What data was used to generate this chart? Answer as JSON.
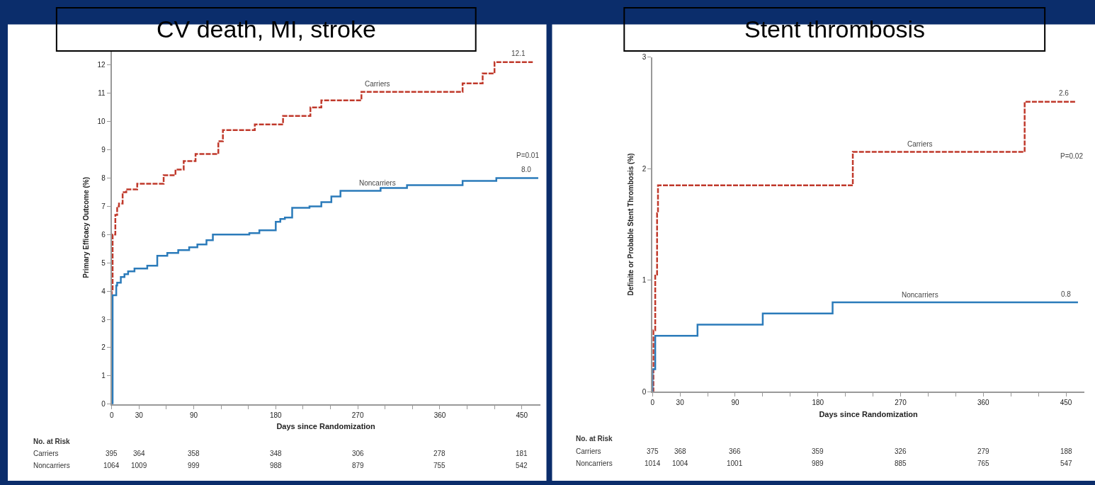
{
  "chart_data": [
    {
      "type": "step",
      "title": "CV death, MI, stroke",
      "xlabel": "Days since Randomization",
      "ylabel": "Primary Efficacy Outcome (%)",
      "xlim": [
        0,
        470
      ],
      "ylim": [
        0,
        12.5
      ],
      "xticks": [
        0,
        30,
        {
          "value": 60,
          "label": null
        },
        90,
        {
          "value": 120,
          "label": null
        },
        {
          "value": 150,
          "label": null
        },
        180,
        {
          "value": 210,
          "label": null
        },
        {
          "value": 240,
          "label": null
        },
        270,
        {
          "value": 300,
          "label": null
        },
        {
          "value": 330,
          "label": null
        },
        360,
        {
          "value": 390,
          "label": null
        },
        {
          "value": 420,
          "label": null
        },
        450
      ],
      "yticks": [
        0,
        1,
        2,
        3,
        4,
        5,
        6,
        7,
        8,
        9,
        10,
        11,
        12
      ],
      "series": [
        {
          "name": "Carriers",
          "color": "#c0392b",
          "line_style": "dashed",
          "x": [
            0,
            0,
            1,
            4,
            6,
            8,
            12,
            16,
            28,
            57,
            70,
            79,
            92,
            117,
            122,
            157,
            188,
            218,
            230,
            274,
            385,
            407,
            420,
            462
          ],
          "values": [
            0,
            4.0,
            6.0,
            6.7,
            7.0,
            7.1,
            7.5,
            7.6,
            7.8,
            8.1,
            8.3,
            8.6,
            8.85,
            9.3,
            9.7,
            9.9,
            10.2,
            10.5,
            10.75,
            11.05,
            11.35,
            11.7,
            12.1,
            12.1
          ]
        },
        {
          "name": "Noncarriers",
          "color": "#2b7bba",
          "line_style": "solid",
          "x": [
            0,
            1,
            5,
            6,
            10,
            14,
            18,
            25,
            39,
            50,
            61,
            73,
            85,
            94,
            104,
            111,
            151,
            162,
            180,
            185,
            190,
            198,
            217,
            230,
            241,
            251,
            295,
            324,
            385,
            422,
            468
          ],
          "values": [
            0,
            3.85,
            4.2,
            4.3,
            4.5,
            4.6,
            4.7,
            4.8,
            4.9,
            5.25,
            5.35,
            5.45,
            5.55,
            5.65,
            5.8,
            6.0,
            6.05,
            6.15,
            6.45,
            6.55,
            6.6,
            6.95,
            7.0,
            7.15,
            7.35,
            7.55,
            7.65,
            7.75,
            7.9,
            8.0,
            8.0
          ]
        }
      ],
      "annotations": [
        "12.1",
        "8.0",
        "P=0.01",
        "No. at Risk",
        "Carriers",
        "395",
        "364",
        "358",
        "348",
        "306",
        "278",
        "181",
        "Noncarriers",
        "1064",
        "1009",
        "999",
        "988",
        "879",
        "755",
        "542"
      ]
    },
    {
      "type": "step",
      "title": "Stent thrombosis",
      "xlabel": "Days since Randomization",
      "ylabel": "Definite or Probable Stent Thrombosis (%)",
      "xlim": [
        0,
        470
      ],
      "ylim": [
        0,
        3
      ],
      "xticks": [
        0,
        30,
        {
          "value": 60,
          "label": null
        },
        90,
        {
          "value": 120,
          "label": null
        },
        {
          "value": 150,
          "label": null
        },
        180,
        {
          "value": 210,
          "label": null
        },
        {
          "value": 240,
          "label": null
        },
        270,
        {
          "value": 300,
          "label": null
        },
        {
          "value": 330,
          "label": null
        },
        360,
        {
          "value": 390,
          "label": null
        },
        {
          "value": 420,
          "label": null
        },
        450
      ],
      "yticks": [
        0,
        1,
        2,
        3
      ],
      "series": [
        {
          "name": "Carriers",
          "color": "#c0392b",
          "line_style": "dashed",
          "x": [
            0,
            1,
            3,
            5,
            6,
            218,
            405,
            461
          ],
          "values": [
            0,
            0.55,
            1.05,
            1.6,
            1.85,
            2.15,
            2.6,
            2.6
          ]
        },
        {
          "name": "Noncarriers",
          "color": "#2b7bba",
          "line_style": "solid",
          "x": [
            0,
            0,
            3,
            49,
            120,
            196,
            463
          ],
          "values": [
            0,
            0.2,
            0.5,
            0.6,
            0.7,
            0.8,
            0.8
          ]
        }
      ],
      "annotations": [
        "2.6",
        "0.8",
        "P=0.02",
        "No. at Risk",
        "Carriers",
        "375",
        "368",
        "366",
        "359",
        "326",
        "279",
        "188",
        "Noncarriers",
        "1014",
        "1004",
        "1001",
        "989",
        "885",
        "765",
        "547"
      ]
    }
  ]
}
